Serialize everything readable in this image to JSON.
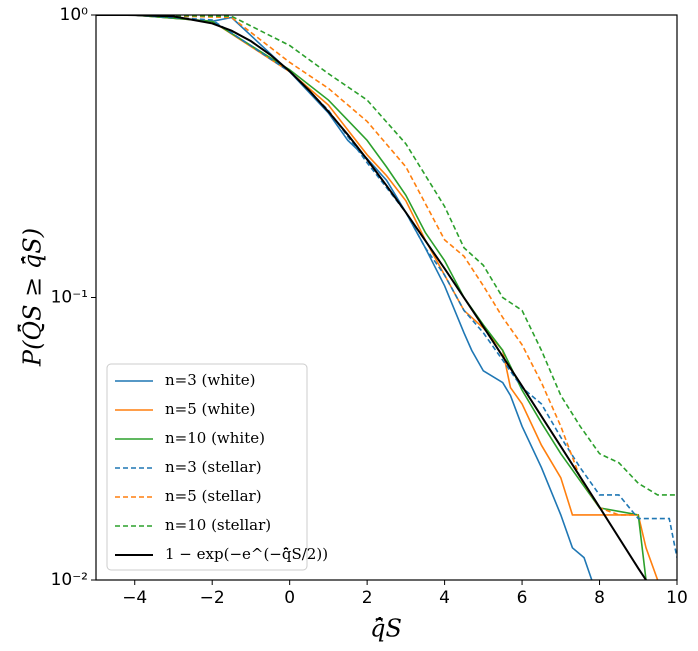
{
  "chart_data": {
    "type": "line",
    "log_y": true,
    "xlabel": "q̂̄S",
    "ylabel": "P(Q̂̄S ≥ q̂̄S)",
    "xlim": [
      -5,
      10
    ],
    "ylim": [
      0.01,
      1
    ],
    "xticks": [
      {
        "value": -4,
        "label": "−4"
      },
      {
        "value": -2,
        "label": "−2"
      },
      0,
      2,
      4,
      6,
      8,
      10
    ],
    "yticks": [
      {
        "value": 0.01,
        "label": "10⁻²"
      },
      {
        "value": 0.1,
        "label": "10⁻¹"
      },
      {
        "value": 1,
        "label": "10⁰"
      }
    ],
    "legend": "lower left",
    "series": [
      {
        "name": "n=3 (white)",
        "color": "#1f77b4",
        "linestyle": "solid",
        "x": [
          -5,
          -4,
          -2,
          -1.5,
          0,
          1,
          1.5,
          2,
          2.5,
          3,
          3.5,
          4,
          4.5,
          4.7,
          5,
          5.5,
          5.7,
          6,
          6.5,
          7,
          7.3,
          7.6,
          7.8
        ],
        "values": [
          1,
          0.999,
          0.95,
          0.98,
          0.63,
          0.45,
          0.36,
          0.31,
          0.26,
          0.2,
          0.15,
          0.11,
          0.075,
          0.065,
          0.055,
          0.05,
          0.045,
          0.035,
          0.025,
          0.017,
          0.013,
          0.012,
          0.01
        ]
      },
      {
        "name": "n=5 (white)",
        "color": "#ff7f0e",
        "linestyle": "solid",
        "x": [
          -5,
          -4,
          -2,
          0,
          1,
          2,
          2.5,
          3,
          3.5,
          4,
          4.5,
          5,
          5.5,
          5.7,
          6,
          6.5,
          7,
          7.3,
          8,
          9,
          9.2,
          9.5
        ],
        "values": [
          1,
          0.999,
          0.95,
          0.63,
          0.48,
          0.32,
          0.27,
          0.22,
          0.16,
          0.12,
          0.09,
          0.078,
          0.065,
          0.048,
          0.042,
          0.03,
          0.023,
          0.017,
          0.017,
          0.017,
          0.013,
          0.01
        ]
      },
      {
        "name": "n=10 (white)",
        "color": "#2ca02c",
        "linestyle": "solid",
        "x": [
          -5,
          -4,
          -2,
          0,
          1,
          2,
          2.5,
          3,
          3.5,
          4,
          4.5,
          5,
          5.5,
          6,
          6.5,
          7,
          8,
          9,
          9.2
        ],
        "values": [
          1,
          0.999,
          0.95,
          0.64,
          0.5,
          0.36,
          0.29,
          0.23,
          0.17,
          0.135,
          0.1,
          0.08,
          0.065,
          0.047,
          0.036,
          0.028,
          0.018,
          0.017,
          0.01
        ]
      },
      {
        "name": "n=3 (stellar)",
        "color": "#1f77b4",
        "linestyle": "dashed",
        "x": [
          -5,
          -4,
          -2,
          0,
          1,
          2,
          3,
          3.5,
          4,
          4.5,
          5,
          5.5,
          6,
          6.5,
          7,
          7.5,
          8,
          8.5,
          9,
          9.8,
          10
        ],
        "values": [
          1,
          0.999,
          0.96,
          0.63,
          0.46,
          0.3,
          0.2,
          0.15,
          0.12,
          0.09,
          0.075,
          0.06,
          0.048,
          0.042,
          0.032,
          0.025,
          0.02,
          0.02,
          0.0165,
          0.0165,
          0.012
        ]
      },
      {
        "name": "n=5 (stellar)",
        "color": "#ff7f0e",
        "linestyle": "dashed",
        "x": [
          -5,
          -4,
          -1.5,
          0,
          1,
          2,
          3,
          4,
          4.5,
          5,
          5.5,
          6,
          6.5,
          7,
          7.5,
          8,
          8.5,
          9
        ],
        "values": [
          1,
          0.999,
          0.98,
          0.68,
          0.55,
          0.42,
          0.29,
          0.16,
          0.14,
          0.11,
          0.085,
          0.068,
          0.05,
          0.035,
          0.023,
          0.018,
          0.017,
          0.017
        ]
      },
      {
        "name": "n=10 (stellar)",
        "color": "#2ca02c",
        "linestyle": "dashed",
        "x": [
          -5,
          -4,
          -1.5,
          0,
          1,
          2,
          3,
          4,
          4.5,
          5,
          5.5,
          6,
          6.5,
          7,
          7.5,
          8,
          8.5,
          9,
          9.5,
          10
        ],
        "values": [
          1,
          0.999,
          0.99,
          0.78,
          0.62,
          0.5,
          0.35,
          0.21,
          0.15,
          0.13,
          0.1,
          0.09,
          0.065,
          0.045,
          0.035,
          0.028,
          0.026,
          0.022,
          0.02,
          0.02
        ]
      },
      {
        "name": "1 − exp(−e^(−q̂̄S/2))",
        "color": "#000000",
        "linestyle": "solid",
        "x": [
          -5,
          -4,
          -3,
          -2,
          -1.5,
          -1,
          -0.5,
          0,
          0.5,
          1,
          1.5,
          2,
          2.5,
          3,
          4,
          5,
          6,
          7,
          8,
          9,
          9.2
        ],
        "values": [
          1,
          0.9994,
          0.9887,
          0.934,
          0.88,
          0.808,
          0.723,
          0.632,
          0.541,
          0.455,
          0.377,
          0.308,
          0.249,
          0.2,
          0.1266,
          0.0788,
          0.0486,
          0.0297,
          0.0181,
          0.011,
          0.01
        ]
      }
    ]
  }
}
